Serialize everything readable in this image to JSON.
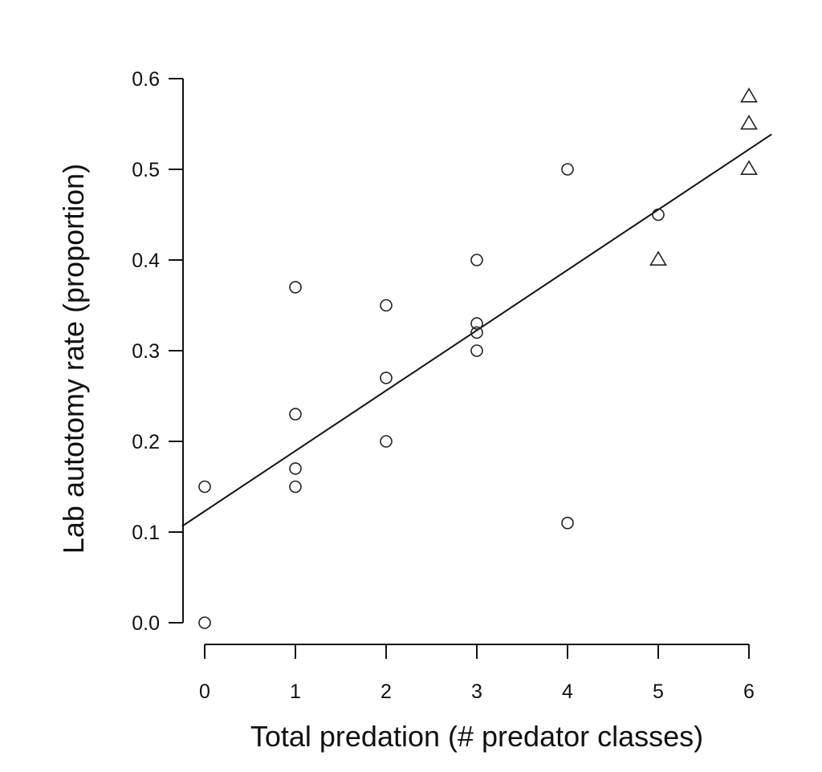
{
  "chart_data": {
    "type": "scatter",
    "xlabel": "Total predation (# predator classes)",
    "ylabel": "Lab autotomy rate (proportion)",
    "xlim": [
      0,
      6
    ],
    "ylim": [
      0.0,
      0.6
    ],
    "x_ticks": [
      "0",
      "1",
      "2",
      "3",
      "4",
      "5",
      "6"
    ],
    "y_ticks": [
      "0.0",
      "0.1",
      "0.2",
      "0.3",
      "0.4",
      "0.5",
      "0.6"
    ],
    "grid": false,
    "series": [
      {
        "marker": "circle",
        "points": [
          [
            0,
            0.15
          ],
          [
            0,
            0.0
          ],
          [
            1,
            0.37
          ],
          [
            1,
            0.23
          ],
          [
            1,
            0.17
          ],
          [
            1,
            0.15
          ],
          [
            2,
            0.35
          ],
          [
            2,
            0.27
          ],
          [
            2,
            0.2
          ],
          [
            3,
            0.4
          ],
          [
            3,
            0.33
          ],
          [
            3,
            0.32
          ],
          [
            3,
            0.3
          ],
          [
            4,
            0.5
          ],
          [
            4,
            0.11
          ],
          [
            5,
            0.45
          ]
        ]
      },
      {
        "marker": "triangle",
        "points": [
          [
            5,
            0.4
          ],
          [
            6,
            0.58
          ],
          [
            6,
            0.55
          ],
          [
            6,
            0.5
          ]
        ]
      }
    ],
    "fit_line": {
      "intercept": 0.123,
      "slope": 0.0665,
      "x_range": [
        -0.25,
        6.25
      ]
    }
  }
}
